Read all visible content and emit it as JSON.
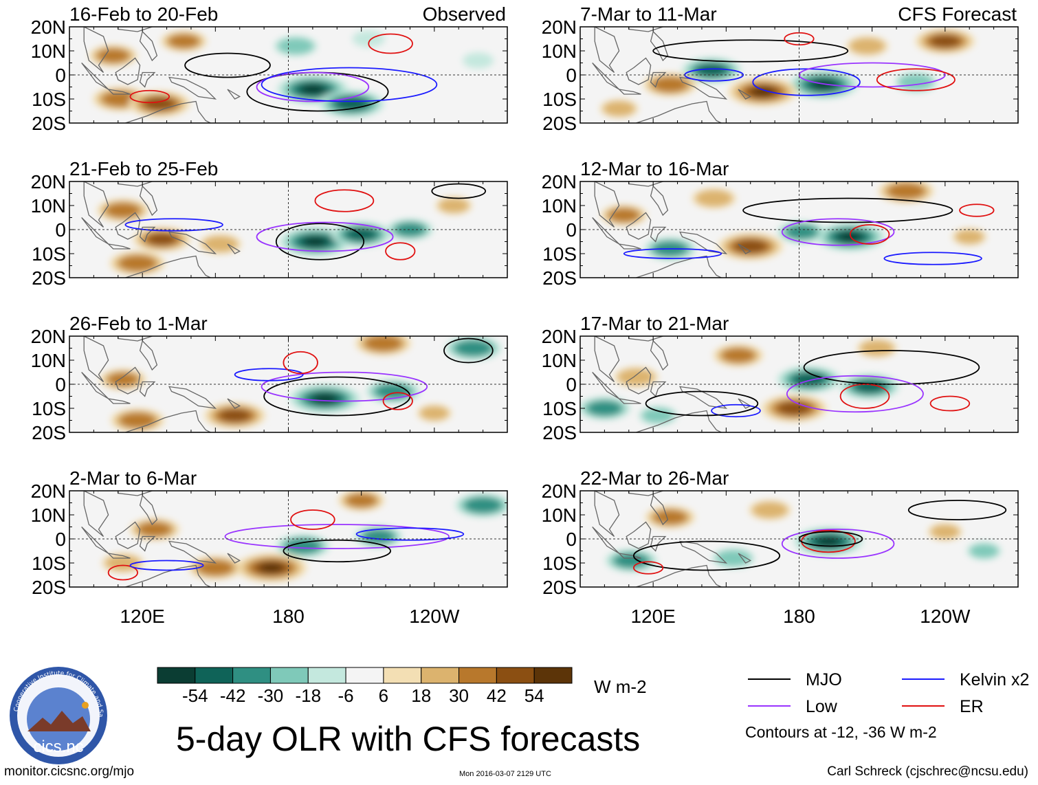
{
  "page": {
    "title": "5-day OLR with CFS forecasts",
    "url": "monitor.cicsnc.org/mjo",
    "timestamp": "Mon 2016-03-07 2129 UTC",
    "author": "Carl Schreck (cjschrec@ncsu.edu)",
    "logo_text": "cics.nc",
    "logo_ring_text": "Cooperative Institute for Climate and Satellites"
  },
  "chart_data": {
    "type": "heatmap",
    "variable": "5-day OLR anomaly",
    "units": "W m-2",
    "contour_note": "Contours at -12, -36 W m-2",
    "axes": {
      "xticks": [
        {
          "label": "120E",
          "lon": 120
        },
        {
          "label": "180",
          "lon": 180
        },
        {
          "label": "120W",
          "lon": 240
        }
      ],
      "lon_range": [
        90,
        270
      ],
      "yticks": [
        {
          "label": "20N",
          "lat": 20
        },
        {
          "label": "10N",
          "lat": 10
        },
        {
          "label": "0",
          "lat": 0
        },
        {
          "label": "10S",
          "lat": -10
        },
        {
          "label": "20S",
          "lat": -20
        }
      ],
      "lat_range": [
        -20,
        20
      ]
    },
    "column_labels": {
      "left": "Observed",
      "right": "CFS Forecast"
    },
    "colorbar": {
      "ticks": [
        "-54",
        "-42",
        "-30",
        "-18",
        "-6",
        "6",
        "18",
        "30",
        "42",
        "54"
      ],
      "colors": [
        "#0b3d33",
        "#0f6358",
        "#2f8f82",
        "#7fc9b9",
        "#c4e8de",
        "#f4f4f4",
        "#f3dfb4",
        "#dcb36e",
        "#b8782c",
        "#8b4f12",
        "#5c3408"
      ]
    },
    "legend": [
      {
        "label": "MJO",
        "color": "#000000"
      },
      {
        "label": "Kelvin x2",
        "color": "#1a1aff"
      },
      {
        "label": "Low",
        "color": "#9933ff"
      },
      {
        "label": "ER",
        "color": "#e01010"
      }
    ],
    "panels": [
      {
        "label": "16-Feb to 20-Feb",
        "column": "left",
        "row": 0,
        "source": "Observed",
        "blobs": [
          {
            "lon": 190,
            "lat": -6,
            "value": -54
          },
          {
            "lon": 206,
            "lat": -12,
            "value": -48
          },
          {
            "lon": 183,
            "lat": 12,
            "value": -25
          },
          {
            "lon": 111,
            "lat": -10,
            "value": 38
          },
          {
            "lon": 127,
            "lat": -12,
            "value": 44
          },
          {
            "lon": 108,
            "lat": 8,
            "value": 30
          },
          {
            "lon": 137,
            "lat": 14,
            "value": 28
          },
          {
            "lon": 213,
            "lat": 15,
            "value": -14
          },
          {
            "lon": 258,
            "lat": 6,
            "value": -12
          }
        ],
        "contours": [
          {
            "type": "MJO",
            "lon": 192,
            "lat": -7,
            "w": 58,
            "h": 16
          },
          {
            "type": "Low",
            "lon": 190,
            "lat": -5,
            "w": 46,
            "h": 12
          },
          {
            "type": "Kelvin x2",
            "lon": 205,
            "lat": -4,
            "w": 72,
            "h": 14
          },
          {
            "type": "ER",
            "lon": 222,
            "lat": 13,
            "w": 18,
            "h": 8
          },
          {
            "type": "ER",
            "lon": 123,
            "lat": -9,
            "w": 16,
            "h": 5
          },
          {
            "type": "MJO",
            "lon": 155,
            "lat": 4,
            "w": 35,
            "h": 10
          }
        ]
      },
      {
        "label": "21-Feb to 25-Feb",
        "column": "left",
        "row": 1,
        "source": "Observed",
        "blobs": [
          {
            "lon": 191,
            "lat": -5,
            "value": -54
          },
          {
            "lon": 210,
            "lat": -2,
            "value": -42
          },
          {
            "lon": 230,
            "lat": 0,
            "value": -28
          },
          {
            "lon": 112,
            "lat": 8,
            "value": 34
          },
          {
            "lon": 128,
            "lat": -4,
            "value": 40
          },
          {
            "lon": 118,
            "lat": -14,
            "value": 38
          },
          {
            "lon": 152,
            "lat": -6,
            "value": 24
          },
          {
            "lon": 248,
            "lat": 10,
            "value": 18
          }
        ],
        "contours": [
          {
            "type": "MJO",
            "lon": 193,
            "lat": -5,
            "w": 36,
            "h": 15
          },
          {
            "type": "Low",
            "lon": 195,
            "lat": -3,
            "w": 56,
            "h": 12
          },
          {
            "type": "Kelvin x2",
            "lon": 133,
            "lat": 2,
            "w": 40,
            "h": 5
          },
          {
            "type": "ER",
            "lon": 203,
            "lat": 12,
            "w": 24,
            "h": 9
          },
          {
            "type": "ER",
            "lon": 226,
            "lat": -9,
            "w": 12,
            "h": 7
          },
          {
            "type": "MJO",
            "lon": 250,
            "lat": 16,
            "w": 22,
            "h": 6
          }
        ]
      },
      {
        "label": "26-Feb to 1-Mar",
        "column": "left",
        "row": 2,
        "source": "Observed",
        "blobs": [
          {
            "lon": 195,
            "lat": -6,
            "value": -54
          },
          {
            "lon": 223,
            "lat": -3,
            "value": -36
          },
          {
            "lon": 256,
            "lat": 15,
            "value": -38
          },
          {
            "lon": 158,
            "lat": -13,
            "value": 44
          },
          {
            "lon": 118,
            "lat": -15,
            "value": 36
          },
          {
            "lon": 219,
            "lat": 17,
            "value": 38
          },
          {
            "lon": 112,
            "lat": 2,
            "value": 28
          },
          {
            "lon": 240,
            "lat": -12,
            "value": 16
          }
        ],
        "contours": [
          {
            "type": "MJO",
            "lon": 200,
            "lat": -5,
            "w": 60,
            "h": 16
          },
          {
            "type": "Low",
            "lon": 203,
            "lat": -1,
            "w": 68,
            "h": 12
          },
          {
            "type": "Kelvin x2",
            "lon": 172,
            "lat": 4,
            "w": 28,
            "h": 5
          },
          {
            "type": "ER",
            "lon": 185,
            "lat": 9,
            "w": 14,
            "h": 9
          },
          {
            "type": "ER",
            "lon": 225,
            "lat": -7,
            "w": 12,
            "h": 7
          },
          {
            "type": "MJO",
            "lon": 254,
            "lat": 14,
            "w": 20,
            "h": 10
          }
        ]
      },
      {
        "label": "2-Mar to 6-Mar",
        "column": "left",
        "row": 3,
        "source": "Observed",
        "blobs": [
          {
            "lon": 186,
            "lat": -3,
            "value": -36
          },
          {
            "lon": 217,
            "lat": 1,
            "value": -30
          },
          {
            "lon": 260,
            "lat": 14,
            "value": -38
          },
          {
            "lon": 173,
            "lat": -12,
            "value": 54
          },
          {
            "lon": 150,
            "lat": -12,
            "value": 36
          },
          {
            "lon": 125,
            "lat": 4,
            "value": 32
          },
          {
            "lon": 210,
            "lat": 16,
            "value": 28
          },
          {
            "lon": 112,
            "lat": -10,
            "value": 24
          }
        ],
        "contours": [
          {
            "type": "Low",
            "lon": 200,
            "lat": 1,
            "w": 92,
            "h": 10
          },
          {
            "type": "MJO",
            "lon": 200,
            "lat": -5,
            "w": 44,
            "h": 9
          },
          {
            "type": "Kelvin x2",
            "lon": 230,
            "lat": 2,
            "w": 44,
            "h": 5
          },
          {
            "type": "ER",
            "lon": 190,
            "lat": 8,
            "w": 18,
            "h": 8
          },
          {
            "type": "ER",
            "lon": 112,
            "lat": -14,
            "w": 12,
            "h": 6
          },
          {
            "type": "Kelvin x2",
            "lon": 130,
            "lat": -11,
            "w": 30,
            "h": 4
          }
        ]
      },
      {
        "label": "7-Mar to 11-Mar",
        "column": "right",
        "row": 0,
        "source": "CFS Forecast",
        "blobs": [
          {
            "lon": 190,
            "lat": -4,
            "value": -52
          },
          {
            "lon": 144,
            "lat": 2,
            "value": -42
          },
          {
            "lon": 228,
            "lat": -3,
            "value": -24
          },
          {
            "lon": 165,
            "lat": -7,
            "value": 52
          },
          {
            "lon": 127,
            "lat": -4,
            "value": 36
          },
          {
            "lon": 240,
            "lat": 14,
            "value": 42
          },
          {
            "lon": 208,
            "lat": 12,
            "value": 24
          },
          {
            "lon": 106,
            "lat": -14,
            "value": 20
          }
        ],
        "contours": [
          {
            "type": "MJO",
            "lon": 160,
            "lat": 10,
            "w": 80,
            "h": 9
          },
          {
            "type": "Kelvin x2",
            "lon": 183,
            "lat": -3,
            "w": 44,
            "h": 11
          },
          {
            "type": "Low",
            "lon": 210,
            "lat": 0,
            "w": 60,
            "h": 10
          },
          {
            "type": "ER",
            "lon": 228,
            "lat": -2,
            "w": 32,
            "h": 9
          },
          {
            "type": "ER",
            "lon": 180,
            "lat": 15,
            "w": 12,
            "h": 5
          },
          {
            "type": "Kelvin x2",
            "lon": 145,
            "lat": 0,
            "w": 24,
            "h": 5
          }
        ]
      },
      {
        "label": "12-Mar to 16-Mar",
        "column": "right",
        "row": 1,
        "source": "CFS Forecast",
        "blobs": [
          {
            "lon": 201,
            "lat": -3,
            "value": -52
          },
          {
            "lon": 181,
            "lat": -1,
            "value": -30
          },
          {
            "lon": 127,
            "lat": -8,
            "value": -34
          },
          {
            "lon": 160,
            "lat": -7,
            "value": 48
          },
          {
            "lon": 224,
            "lat": 16,
            "value": 38
          },
          {
            "lon": 108,
            "lat": 6,
            "value": 28
          },
          {
            "lon": 145,
            "lat": 13,
            "value": 26
          },
          {
            "lon": 250,
            "lat": -3,
            "value": 16
          }
        ],
        "contours": [
          {
            "type": "MJO",
            "lon": 200,
            "lat": 8,
            "w": 86,
            "h": 10
          },
          {
            "type": "Low",
            "lon": 196,
            "lat": -1,
            "w": 46,
            "h": 11
          },
          {
            "type": "Kelvin x2",
            "lon": 235,
            "lat": -12,
            "w": 40,
            "h": 5
          },
          {
            "type": "Kelvin x2",
            "lon": 128,
            "lat": -10,
            "w": 40,
            "h": 4
          },
          {
            "type": "ER",
            "lon": 209,
            "lat": -2,
            "w": 16,
            "h": 8
          },
          {
            "type": "ER",
            "lon": 253,
            "lat": 8,
            "w": 14,
            "h": 5
          }
        ]
      },
      {
        "label": "17-Mar to 21-Mar",
        "column": "right",
        "row": 2,
        "source": "CFS Forecast",
        "blobs": [
          {
            "lon": 184,
            "lat": 2,
            "value": -46
          },
          {
            "lon": 209,
            "lat": -1,
            "value": -42
          },
          {
            "lon": 100,
            "lat": -10,
            "value": -34
          },
          {
            "lon": 122,
            "lat": -13,
            "value": -20
          },
          {
            "lon": 178,
            "lat": -10,
            "value": 48
          },
          {
            "lon": 155,
            "lat": 12,
            "value": 32
          },
          {
            "lon": 212,
            "lat": 15,
            "value": 22
          },
          {
            "lon": 113,
            "lat": 3,
            "value": 26
          }
        ],
        "contours": [
          {
            "type": "MJO",
            "lon": 218,
            "lat": 7,
            "w": 72,
            "h": 14
          },
          {
            "type": "Low",
            "lon": 203,
            "lat": -4,
            "w": 56,
            "h": 15
          },
          {
            "type": "ER",
            "lon": 207,
            "lat": -5,
            "w": 20,
            "h": 10
          },
          {
            "type": "Kelvin x2",
            "lon": 154,
            "lat": -11,
            "w": 20,
            "h": 5
          },
          {
            "type": "ER",
            "lon": 242,
            "lat": -8,
            "w": 16,
            "h": 6
          },
          {
            "type": "MJO",
            "lon": 140,
            "lat": -8,
            "w": 46,
            "h": 10
          }
        ]
      },
      {
        "label": "22-Mar to 26-Mar",
        "column": "right",
        "row": 3,
        "source": "CFS Forecast",
        "blobs": [
          {
            "lon": 192,
            "lat": -1,
            "value": -52
          },
          {
            "lon": 111,
            "lat": -9,
            "value": -34
          },
          {
            "lon": 153,
            "lat": -8,
            "value": -24
          },
          {
            "lon": 127,
            "lat": 9,
            "value": 32
          },
          {
            "lon": 168,
            "lat": 12,
            "value": 24
          },
          {
            "lon": 240,
            "lat": 3,
            "value": 16
          },
          {
            "lon": 256,
            "lat": -5,
            "value": -16
          }
        ],
        "contours": [
          {
            "type": "Low",
            "lon": 196,
            "lat": -2,
            "w": 46,
            "h": 12
          },
          {
            "type": "ER",
            "lon": 192,
            "lat": -1,
            "w": 22,
            "h": 9
          },
          {
            "type": "MJO",
            "lon": 193,
            "lat": 0,
            "w": 26,
            "h": 6
          },
          {
            "type": "MJO",
            "lon": 142,
            "lat": -7,
            "w": 60,
            "h": 12
          },
          {
            "type": "MJO",
            "lon": 245,
            "lat": 12,
            "w": 40,
            "h": 8
          },
          {
            "type": "ER",
            "lon": 118,
            "lat": -12,
            "w": 12,
            "h": 5
          }
        ]
      }
    ]
  }
}
